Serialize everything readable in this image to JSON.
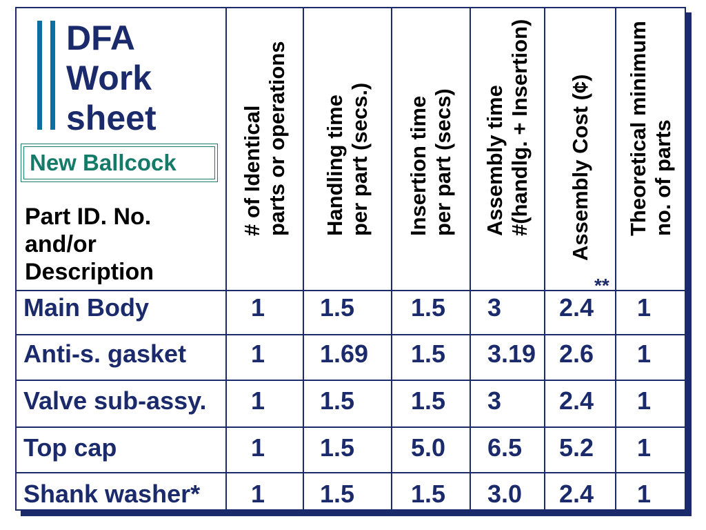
{
  "title_lines": [
    "DFA",
    "Work",
    "sheet"
  ],
  "product_name": "New Ballcock",
  "part_label_lines": [
    "Part ID. No.",
    "and/or",
    "Description"
  ],
  "columns": [
    {
      "key": "count",
      "lines": [
        "# of Identical",
        "parts or operations"
      ]
    },
    {
      "key": "handling",
      "lines": [
        "Handling time",
        "per part (secs.)"
      ]
    },
    {
      "key": "insertion",
      "lines": [
        "Insertion time",
        "per part (secs)"
      ]
    },
    {
      "key": "assembly_time",
      "lines": [
        "Assembly time",
        "#(handlg. + Insertion)"
      ]
    },
    {
      "key": "assembly_cost",
      "lines": [
        "Assembly Cost (¢)"
      ]
    },
    {
      "key": "theoretical",
      "lines": [
        "Theoretical minimum",
        "no. of parts"
      ]
    }
  ],
  "cost_footnote_marker": "**",
  "rows": [
    {
      "part": "Main Body",
      "values": [
        "1",
        "1.5",
        "1.5",
        "3",
        "2.4",
        "1"
      ]
    },
    {
      "part": "Anti-s. gasket",
      "values": [
        "1",
        "1.69",
        "1.5",
        "3.19",
        "2.6",
        "1"
      ]
    },
    {
      "part": "Valve sub-assy.",
      "values": [
        "1",
        "1.5",
        "1.5",
        "3",
        "2.4",
        "1"
      ]
    },
    {
      "part": "Top cap",
      "values": [
        "1",
        "1.5",
        "5.0",
        "6.5",
        "5.2",
        "1"
      ]
    },
    {
      "part": "Shank washer*",
      "values": [
        "1",
        "1.5",
        "1.5",
        "3.0",
        "2.4",
        "1"
      ]
    }
  ],
  "colors": {
    "navy": "#1b2a6b",
    "logo_blue": "#0d6fa0",
    "teal": "#157a68"
  }
}
